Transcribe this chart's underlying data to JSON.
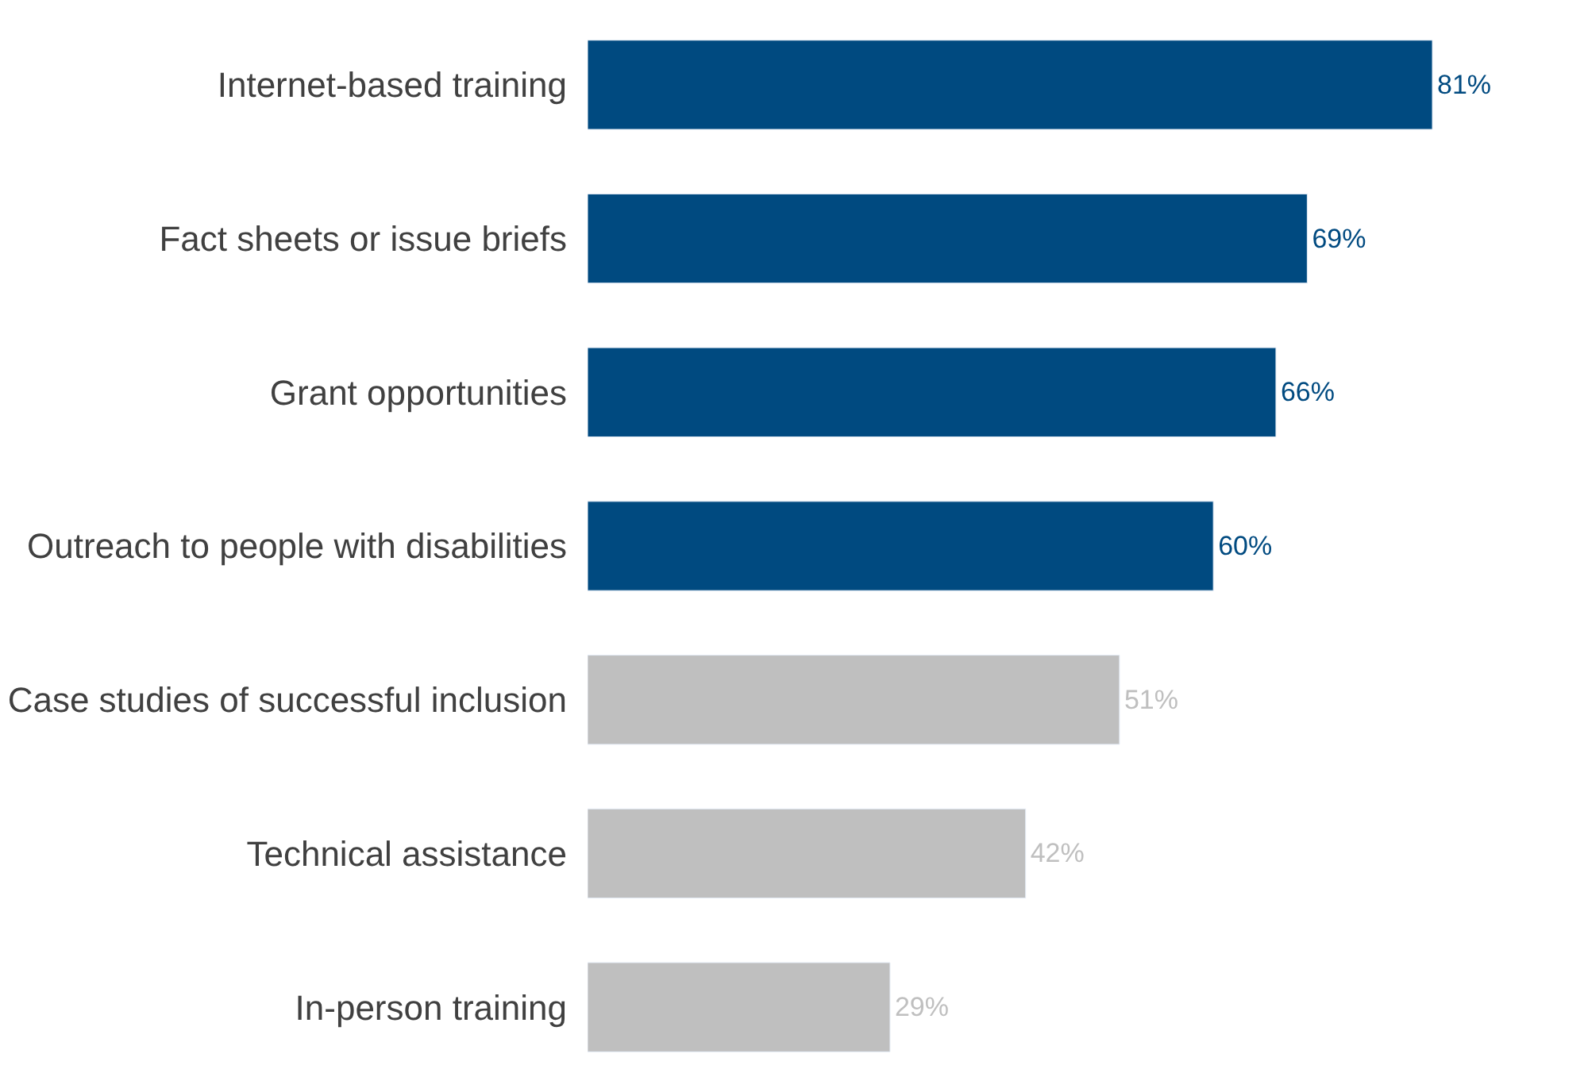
{
  "chart_data": {
    "type": "bar",
    "orientation": "horizontal",
    "categories": [
      "Internet-based training",
      "Fact sheets or issue briefs",
      "Grant opportunities",
      "Outreach to people with disabilities",
      "Case studies of successful inclusion",
      "Technical assistance",
      "In-person training"
    ],
    "values": [
      81,
      69,
      66,
      60,
      51,
      42,
      29
    ],
    "value_labels": [
      "81%",
      "69%",
      "66%",
      "60%",
      "51%",
      "42%",
      "29%"
    ],
    "colors": [
      "#004a80",
      "#004a80",
      "#004a80",
      "#004a80",
      "#bfbfbf",
      "#bfbfbf",
      "#bfbfbf"
    ]
  }
}
